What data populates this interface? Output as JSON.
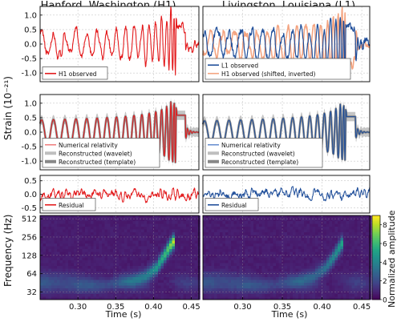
{
  "titles": {
    "left": "Hanford, Washington (H1)",
    "right": "Livingston, Louisiana (L1)"
  },
  "ylabels": {
    "strain": "Strain (10⁻²¹)",
    "frequency": "Frequency (Hz)"
  },
  "xlabel": "Time (s)",
  "colorbar_label": "Normalized amplitude",
  "colors": {
    "h1": "#e31a1c",
    "l1": "#1f4e9a",
    "h1_shifted": "#f4a582",
    "wavelet": "#bfbfbf",
    "template": "#888888",
    "grid": "#c8c8c8"
  },
  "chart_data": [
    {
      "type": "line",
      "panel": "H1 observed",
      "x_range": [
        0.25,
        0.46
      ],
      "x_ticks": [
        0.3,
        0.35,
        0.4,
        0.45
      ],
      "ylim": [
        -1.3,
        1.3
      ],
      "y_ticks": [
        1.0,
        0.5,
        0.0,
        -0.5,
        -1.0
      ],
      "legend": [
        "H1 observed"
      ],
      "legend_location": "lower-left"
    },
    {
      "type": "line",
      "panel": "L1 observed",
      "x_range": [
        0.25,
        0.46
      ],
      "x_ticks": [
        0.3,
        0.35,
        0.4,
        0.45
      ],
      "ylim": [
        -1.3,
        1.3
      ],
      "legend": [
        "L1 observed",
        "H1 observed (shifted, inverted)"
      ],
      "legend_location": "lower-left"
    },
    {
      "type": "line",
      "panel": "H1 reconstruction",
      "x_range": [
        0.25,
        0.46
      ],
      "ylim": [
        -1.3,
        1.3
      ],
      "y_ticks": [
        1.0,
        0.5,
        0.0,
        -0.5,
        -1.0
      ],
      "legend": [
        "Numerical relativity",
        "Reconstructed (wavelet)",
        "Reconstructed (template)"
      ],
      "legend_location": "lower-left"
    },
    {
      "type": "line",
      "panel": "L1 reconstruction",
      "x_range": [
        0.25,
        0.46
      ],
      "ylim": [
        -1.3,
        1.3
      ],
      "legend": [
        "Numerical relativity",
        "Reconstructed (wavelet)",
        "Reconstructed (template)"
      ],
      "legend_location": "lower-left"
    },
    {
      "type": "line",
      "panel": "H1 residual",
      "x_range": [
        0.25,
        0.46
      ],
      "ylim": [
        -0.7,
        0.7
      ],
      "y_ticks": [
        0.5,
        0.0,
        -0.5
      ],
      "legend": [
        "Residual"
      ],
      "legend_location": "lower-left"
    },
    {
      "type": "line",
      "panel": "L1 residual",
      "x_range": [
        0.25,
        0.46
      ],
      "ylim": [
        -0.7,
        0.7
      ],
      "legend": [
        "Residual"
      ],
      "legend_location": "lower-left"
    },
    {
      "type": "heatmap",
      "panel": "H1 spectrogram",
      "x_range": [
        0.25,
        0.46
      ],
      "x_ticks": [
        0.3,
        0.35,
        0.4,
        0.45
      ],
      "y_scale": "log2",
      "y_range": [
        24,
        580
      ],
      "y_ticks": [
        512,
        256,
        128,
        64,
        32
      ],
      "chirp_track": {
        "time": [
          0.3,
          0.34,
          0.37,
          0.39,
          0.405,
          0.415,
          0.425,
          0.43
        ],
        "frequency": [
          38,
          42,
          48,
          58,
          80,
          130,
          200,
          250
        ]
      },
      "peak_amplitude": 8.5
    },
    {
      "type": "heatmap",
      "panel": "L1 spectrogram",
      "x_range": [
        0.25,
        0.46
      ],
      "x_ticks": [
        0.3,
        0.35,
        0.4,
        0.45
      ],
      "y_scale": "log2",
      "y_range": [
        24,
        580
      ],
      "chirp_track": {
        "time": [
          0.3,
          0.34,
          0.37,
          0.39,
          0.405,
          0.415,
          0.422,
          0.428
        ],
        "frequency": [
          38,
          42,
          48,
          58,
          80,
          120,
          170,
          230
        ]
      },
      "peak_amplitude": 5.5
    },
    {
      "type": "colorbar",
      "panel": "colorbar",
      "range": [
        0,
        9
      ],
      "ticks": [
        8,
        6,
        4,
        2,
        0
      ]
    }
  ]
}
